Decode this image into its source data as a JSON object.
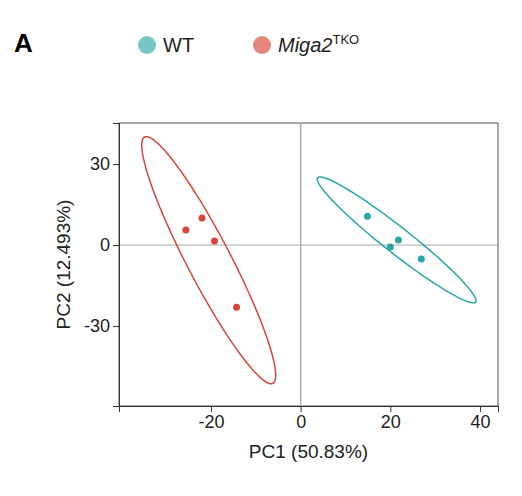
{
  "chart_data": {
    "type": "scatter",
    "panel_label": "A",
    "x_label": "PC1 (50.83%)",
    "y_label": "PC2 (12.493%)",
    "xlim": [
      -40.5,
      44
    ],
    "ylim": [
      -59.6,
      45.2
    ],
    "xticks": [
      -20,
      0,
      20,
      40
    ],
    "yticks": [
      30,
      0,
      -30
    ],
    "vlines": [
      0
    ],
    "hlines": [
      0
    ],
    "legend": "top",
    "series": [
      {
        "name": "WT",
        "color": "#2aa7a5",
        "x": [
          14.9,
          20.0,
          21.8,
          26.9
        ],
        "y": [
          10.7,
          -0.7,
          1.9,
          -5.2
        ],
        "ellipse": {
          "center": [
            21.4,
            1.9
          ],
          "axis1": [
            17.6,
            -23.0
          ],
          "axis2": [
            1.8,
            3.8
          ]
        }
      },
      {
        "name": "Miga2TKO",
        "color": "#d9453a",
        "x": [
          -25.6,
          -22.0,
          -19.2,
          -14.3
        ],
        "y": [
          5.6,
          10.0,
          1.5,
          -23.0
        ],
        "ellipse": {
          "center": [
            -20.5,
            -5.6
          ],
          "axis1": [
            -14.3,
            45.6
          ],
          "axis2": [
            4.3,
            3.8
          ]
        }
      }
    ]
  }
}
